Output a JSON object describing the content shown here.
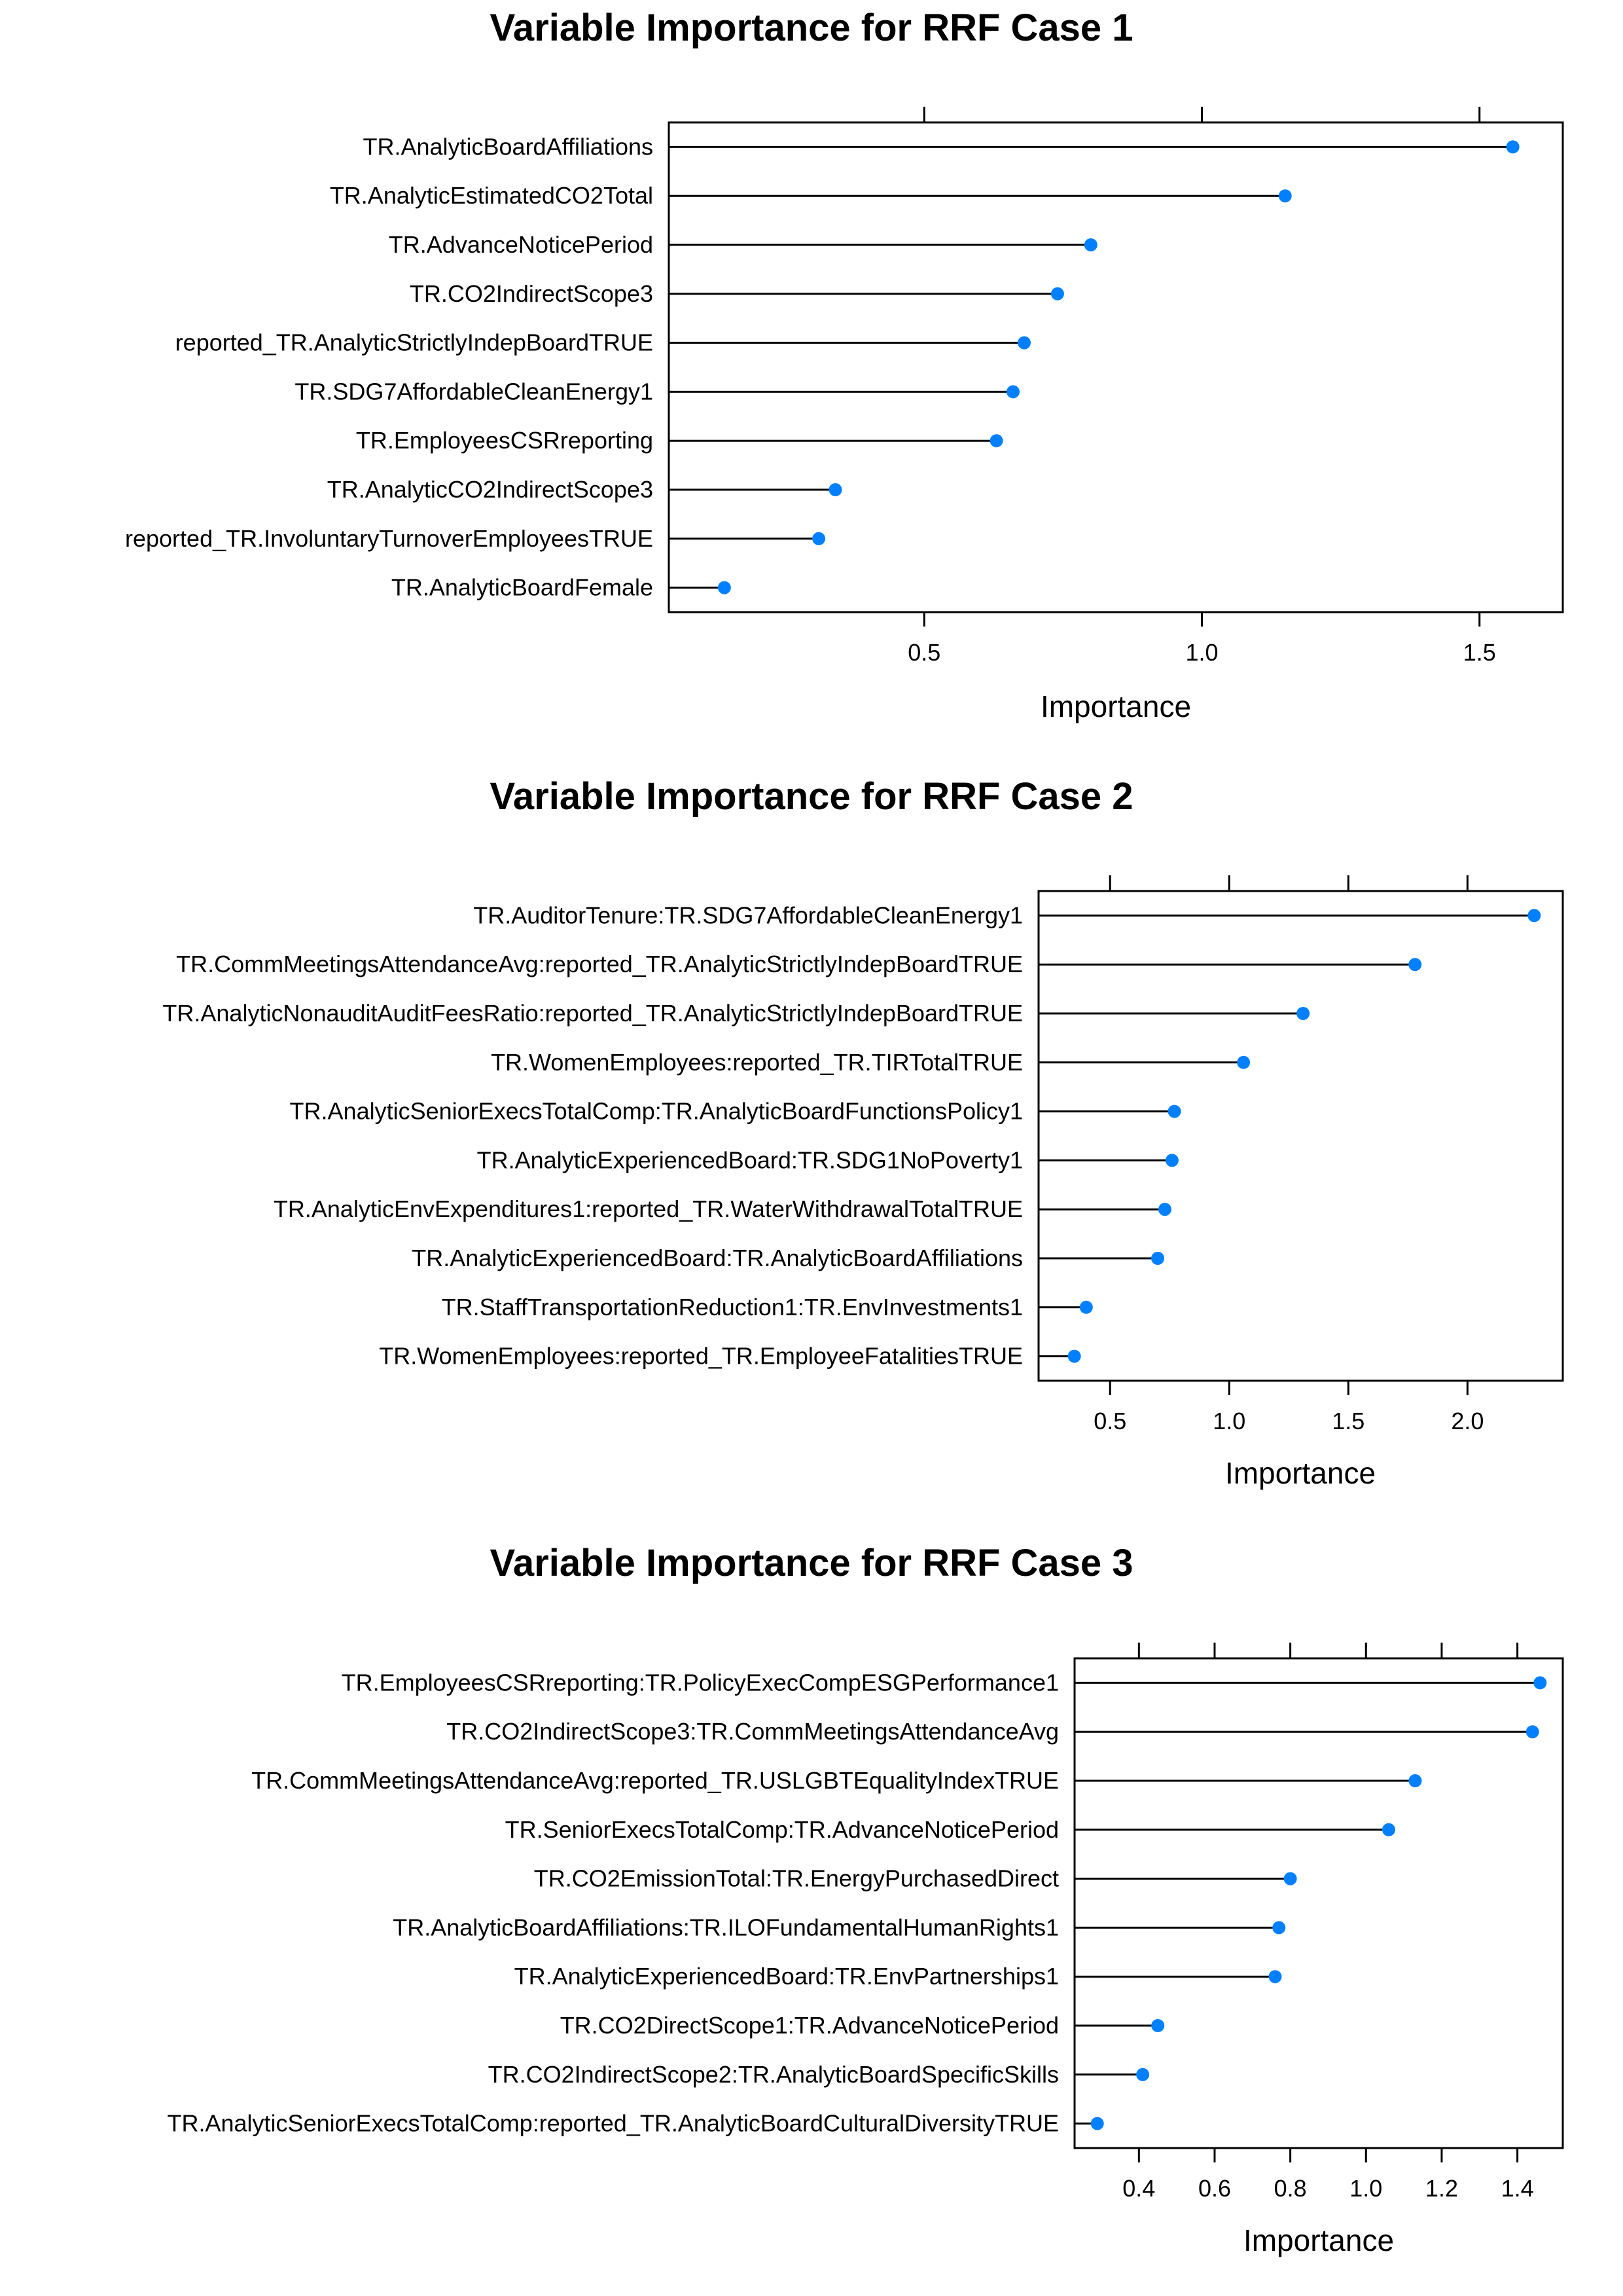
{
  "chart_data": [
    {
      "type": "dot",
      "title": "Variable Importance for RRF Case  1",
      "xlabel": "Importance",
      "ylabel": "",
      "xlim": [
        0.04,
        1.65
      ],
      "xticks": [
        0.5,
        1.0,
        1.5
      ],
      "xtick_labels": [
        "0.5",
        "1.0",
        "1.5"
      ],
      "grid": false,
      "marker_color": "#0080ff",
      "categories": [
        "TR.AnalyticBoardAffiliations",
        "TR.AnalyticEstimatedCO2Total",
        "TR.AdvanceNoticePeriod",
        "TR.CO2IndirectScope3",
        "reported_TR.AnalyticStrictlyIndepBoardTRUE",
        "TR.SDG7AffordableCleanEnergy1",
        "TR.EmployeesCSRreporting",
        "TR.AnalyticCO2IndirectScope3",
        "reported_TR.InvoluntaryTurnoverEmployeesTRUE",
        "TR.AnalyticBoardFemale"
      ],
      "values": [
        1.56,
        1.15,
        0.8,
        0.74,
        0.68,
        0.66,
        0.63,
        0.34,
        0.31,
        0.14
      ]
    },
    {
      "type": "dot",
      "title": "Variable Importance for RRF Case  2",
      "xlabel": "Importance",
      "ylabel": "",
      "xlim": [
        0.2,
        2.4
      ],
      "xticks": [
        0.5,
        1.0,
        1.5,
        2.0
      ],
      "xtick_labels": [
        "0.5",
        "1.0",
        "1.5",
        "2.0"
      ],
      "grid": false,
      "marker_color": "#0080ff",
      "categories": [
        "TR.AuditorTenure:TR.SDG7AffordableCleanEnergy1",
        "TR.CommMeetingsAttendanceAvg:reported_TR.AnalyticStrictlyIndepBoardTRUE",
        "TR.AnalyticNonauditAuditFeesRatio:reported_TR.AnalyticStrictlyIndepBoardTRUE",
        "TR.WomenEmployees:reported_TR.TIRTotalTRUE",
        "TR.AnalyticSeniorExecsTotalComp:TR.AnalyticBoardFunctionsPolicy1",
        "TR.AnalyticExperiencedBoard:TR.SDG1NoPoverty1",
        "TR.AnalyticEnvExpenditures1:reported_TR.WaterWithdrawalTotalTRUE",
        "TR.AnalyticExperiencedBoard:TR.AnalyticBoardAffiliations",
        "TR.StaffTransportationReduction1:TR.EnvInvestments1",
        "TR.WomenEmployees:reported_TR.EmployeeFatalitiesTRUE"
      ],
      "values": [
        2.28,
        1.78,
        1.31,
        1.06,
        0.77,
        0.76,
        0.73,
        0.7,
        0.4,
        0.35
      ]
    },
    {
      "type": "dot",
      "title": "Variable Importance for RRF Case  3",
      "xlabel": "Importance",
      "ylabel": "",
      "xlim": [
        0.23,
        1.52
      ],
      "xticks": [
        0.4,
        0.6,
        0.8,
        1.0,
        1.2,
        1.4
      ],
      "xtick_labels": [
        "0.4",
        "0.6",
        "0.8",
        "1.0",
        "1.2",
        "1.4"
      ],
      "grid": false,
      "marker_color": "#0080ff",
      "categories": [
        "TR.EmployeesCSRreporting:TR.PolicyExecCompESGPerformance1",
        "TR.CO2IndirectScope3:TR.CommMeetingsAttendanceAvg",
        "TR.CommMeetingsAttendanceAvg:reported_TR.USLGBTEqualityIndexTRUE",
        "TR.SeniorExecsTotalComp:TR.AdvanceNoticePeriod",
        "TR.CO2EmissionTotal:TR.EnergyPurchasedDirect",
        "TR.AnalyticBoardAffiliations:TR.ILOFundamentalHumanRights1",
        "TR.AnalyticExperiencedBoard:TR.EnvPartnerships1",
        "TR.CO2DirectScope1:TR.AdvanceNoticePeriod",
        "TR.CO2IndirectScope2:TR.AnalyticBoardSpecificSkills",
        "TR.AnalyticSeniorExecsTotalComp:reported_TR.AnalyticBoardCulturalDiversityTRUE"
      ],
      "values": [
        1.46,
        1.44,
        1.13,
        1.06,
        0.8,
        0.77,
        0.76,
        0.45,
        0.41,
        0.29
      ]
    }
  ]
}
